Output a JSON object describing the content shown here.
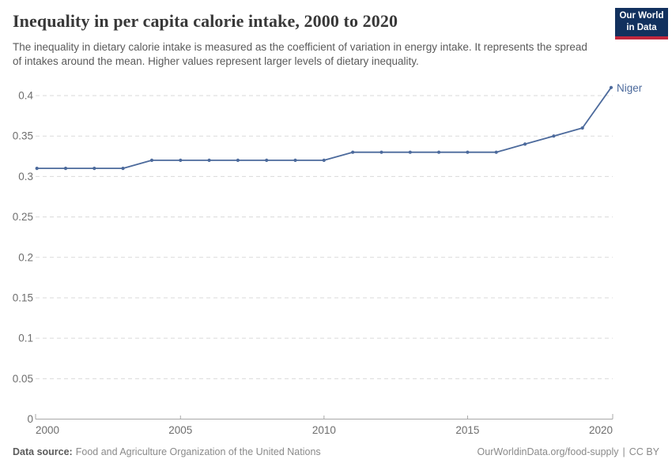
{
  "header": {
    "title": "Inequality in per capita calorie intake, 2000 to 2020",
    "subtitle": "The inequality in dietary calorie intake is measured as the coefficient of variation in energy intake. It represents the spread of intakes around the mean. Higher values represent larger levels of dietary inequality."
  },
  "logo": {
    "line1": "Our World",
    "line2": "in Data"
  },
  "chart_data": {
    "type": "line",
    "title": "Inequality in per capita calorie intake, 2000 to 2020",
    "xlabel": "",
    "ylabel": "",
    "xlim": [
      2000,
      2020
    ],
    "ylim": [
      0,
      0.4
    ],
    "x_ticks": [
      2000,
      2005,
      2010,
      2015,
      2020
    ],
    "y_ticks": [
      0,
      0.05,
      0.1,
      0.15,
      0.2,
      0.25,
      0.3,
      0.35,
      0.4
    ],
    "grid": "horizontal-dashed",
    "legend_position": "end-of-line-label",
    "series": [
      {
        "name": "Niger",
        "color": "#4C6A9C",
        "x": [
          2000,
          2001,
          2002,
          2003,
          2004,
          2005,
          2006,
          2007,
          2008,
          2009,
          2010,
          2011,
          2012,
          2013,
          2014,
          2015,
          2016,
          2017,
          2018,
          2019,
          2020
        ],
        "values": [
          0.31,
          0.31,
          0.31,
          0.31,
          0.32,
          0.32,
          0.32,
          0.32,
          0.32,
          0.32,
          0.32,
          0.33,
          0.33,
          0.33,
          0.33,
          0.33,
          0.33,
          0.34,
          0.35,
          0.36,
          0.41
        ]
      }
    ]
  },
  "footer": {
    "datasource_label": "Data source:",
    "datasource_value": "Food and Agriculture Organization of the United Nations",
    "link_text": "OurWorldinData.org/food-supply",
    "separator": "|",
    "license_text": "CC BY"
  },
  "colors": {
    "line": "#4C6A9C",
    "entity_label": "#4C6A9C",
    "axis_text": "#6e6e6e",
    "gridline": "#dadada",
    "axis_line": "#a8a8a8"
  }
}
